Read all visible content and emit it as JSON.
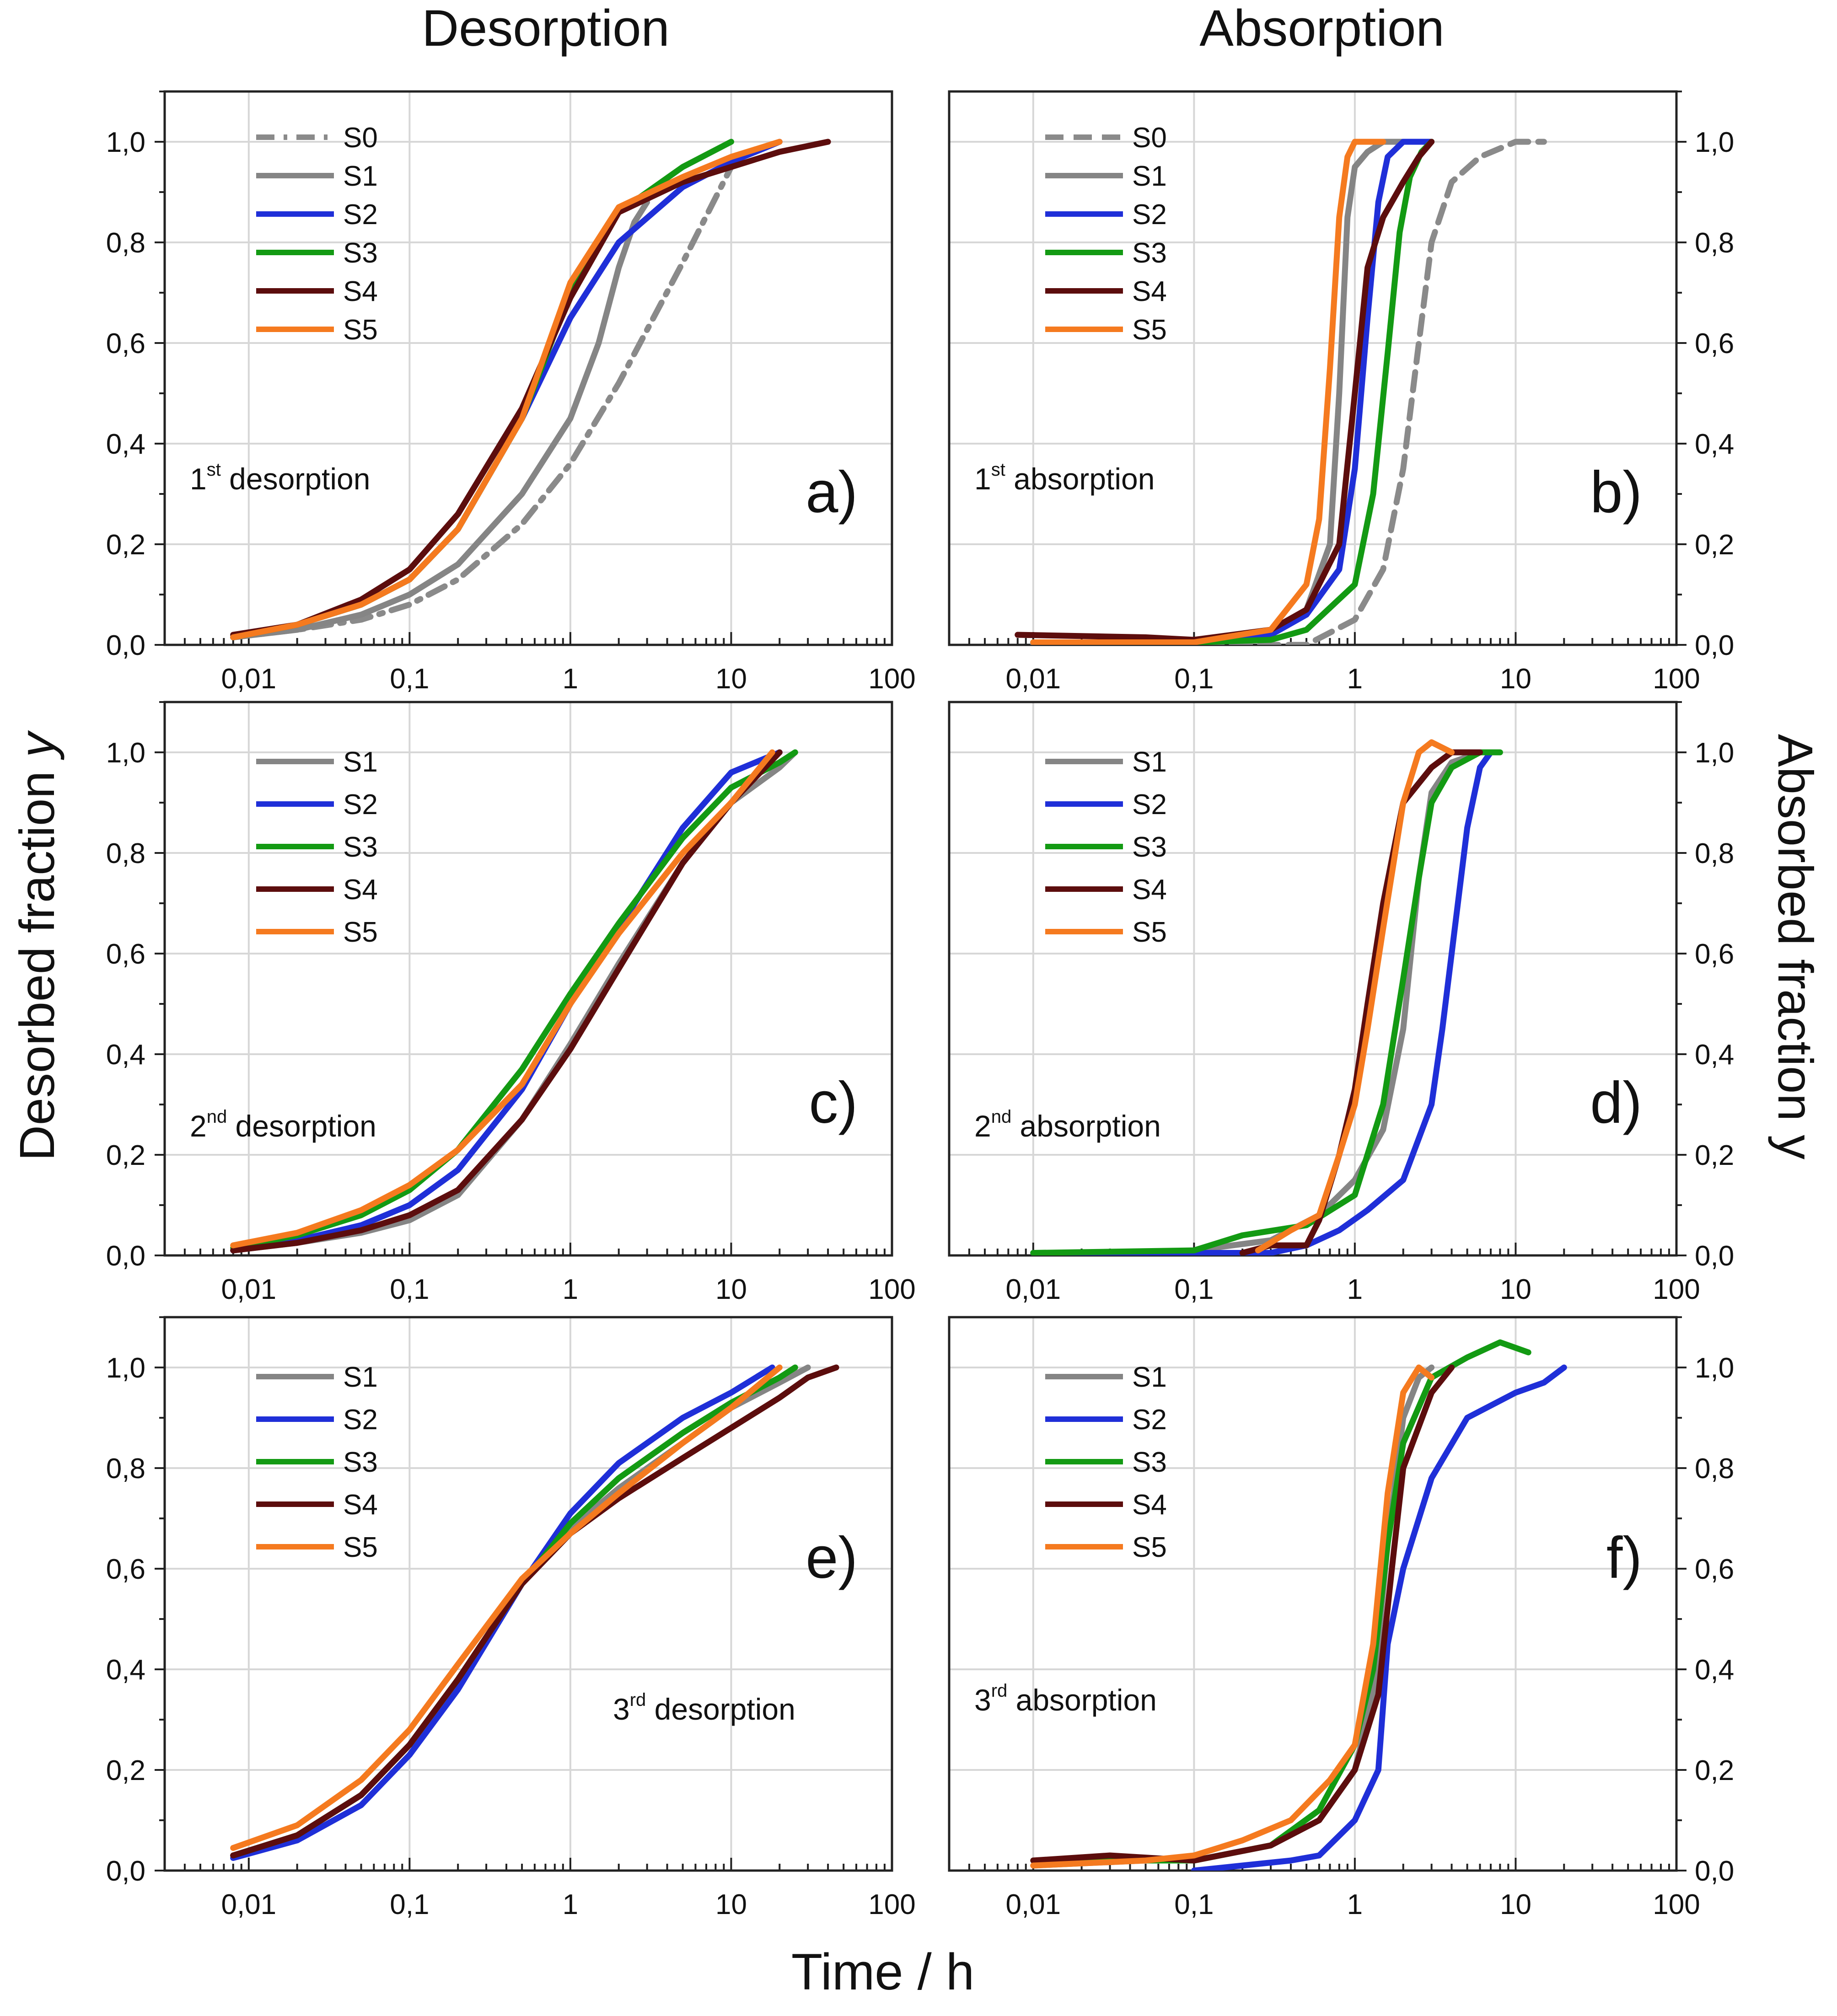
{
  "figure": {
    "column_titles": [
      "Desorption",
      "Absorption"
    ],
    "left_ylabel_main": "Desorbed fraction ",
    "left_ylabel_var": "y",
    "right_ylabel": "Absorbed fraction y",
    "xlabel": "Time / h"
  },
  "colors": {
    "S0": "#8a8a8a",
    "S1": "#858585",
    "S2": "#1f2fd8",
    "S3": "#139a13",
    "S4": "#5c0d0d",
    "S5": "#f57a1f",
    "grid": "#d7d7d7",
    "axis": "#222222"
  },
  "axes": {
    "x_ticks": [
      "0,01",
      "0,1",
      "1",
      "10",
      "100"
    ],
    "x_tick_values": [
      0.01,
      0.1,
      1,
      10,
      100
    ],
    "xlim": [
      0.003,
      100
    ],
    "y_ticks": [
      "0,0",
      "0,2",
      "0,4",
      "0,6",
      "0,8",
      "1,0"
    ],
    "y_tick_values": [
      0,
      0.2,
      0.4,
      0.6,
      0.8,
      1.0
    ],
    "ylim": [
      0,
      1.1
    ]
  },
  "chart_data": [
    {
      "id": "a",
      "type": "line",
      "panel_label": "a)",
      "annotation": {
        "pre": "1",
        "sup": "st",
        "post": " desorption"
      },
      "legend": [
        "S0",
        "S1",
        "S2",
        "S3",
        "S4",
        "S5"
      ],
      "series": [
        {
          "name": "S0",
          "style": "dashdot",
          "x": [
            0.008,
            0.02,
            0.05,
            0.1,
            0.2,
            0.5,
            1,
            2,
            5,
            10
          ],
          "y": [
            0.015,
            0.03,
            0.05,
            0.08,
            0.13,
            0.24,
            0.36,
            0.52,
            0.76,
            0.95
          ]
        },
        {
          "name": "S1",
          "x": [
            0.008,
            0.02,
            0.05,
            0.1,
            0.2,
            0.5,
            1,
            1.5,
            2,
            2.5,
            3
          ],
          "y": [
            0.015,
            0.03,
            0.06,
            0.1,
            0.16,
            0.3,
            0.45,
            0.6,
            0.75,
            0.84,
            0.88
          ]
        },
        {
          "name": "S2",
          "x": [
            0.008,
            0.02,
            0.05,
            0.1,
            0.2,
            0.5,
            1,
            2,
            5,
            10,
            20
          ],
          "y": [
            0.015,
            0.04,
            0.08,
            0.13,
            0.23,
            0.45,
            0.65,
            0.8,
            0.91,
            0.96,
            1.0
          ]
        },
        {
          "name": "S3",
          "x": [
            0.008,
            0.02,
            0.05,
            0.1,
            0.2,
            0.5,
            1,
            2,
            5,
            10
          ],
          "y": [
            0.015,
            0.04,
            0.08,
            0.13,
            0.23,
            0.45,
            0.7,
            0.86,
            0.95,
            1.0
          ]
        },
        {
          "name": "S4",
          "x": [
            0.008,
            0.02,
            0.05,
            0.1,
            0.2,
            0.5,
            1,
            2,
            5,
            10,
            20,
            40
          ],
          "y": [
            0.02,
            0.04,
            0.09,
            0.15,
            0.26,
            0.47,
            0.69,
            0.86,
            0.92,
            0.95,
            0.98,
            1.0
          ]
        },
        {
          "name": "S5",
          "x": [
            0.008,
            0.02,
            0.05,
            0.1,
            0.2,
            0.5,
            1,
            2,
            5,
            10,
            20
          ],
          "y": [
            0.015,
            0.04,
            0.08,
            0.13,
            0.23,
            0.45,
            0.72,
            0.87,
            0.93,
            0.97,
            1.0
          ]
        }
      ]
    },
    {
      "id": "b",
      "type": "line",
      "panel_label": "b)",
      "annotation": {
        "pre": "1",
        "sup": "st",
        "post": " absorption"
      },
      "legend": [
        "S0",
        "S1",
        "S2",
        "S3",
        "S4",
        "S5"
      ],
      "series": [
        {
          "name": "S0",
          "style": "dashed",
          "x": [
            0.01,
            0.1,
            0.3,
            0.5,
            1,
            1.5,
            2,
            2.5,
            3,
            4,
            6,
            10,
            15
          ],
          "y": [
            0.0,
            0.0,
            0.0,
            0.0,
            0.05,
            0.15,
            0.35,
            0.6,
            0.8,
            0.92,
            0.97,
            1.0,
            1.0
          ]
        },
        {
          "name": "S1",
          "x": [
            0.01,
            0.1,
            0.3,
            0.5,
            0.7,
            0.8,
            0.9,
            1.0,
            1.2,
            1.5,
            2,
            3
          ],
          "y": [
            0.005,
            0.005,
            0.02,
            0.07,
            0.2,
            0.5,
            0.85,
            0.95,
            0.98,
            1.0,
            1.0,
            1.0
          ]
        },
        {
          "name": "S2",
          "x": [
            0.01,
            0.1,
            0.3,
            0.5,
            0.8,
            1.0,
            1.2,
            1.4,
            1.6,
            2,
            3
          ],
          "y": [
            0.005,
            0.005,
            0.02,
            0.06,
            0.15,
            0.35,
            0.65,
            0.88,
            0.97,
            1.0,
            1.0
          ]
        },
        {
          "name": "S3",
          "x": [
            0.01,
            0.1,
            0.3,
            0.5,
            1.0,
            1.3,
            1.6,
            1.9,
            2.2,
            2.6,
            3
          ],
          "y": [
            0.005,
            0.005,
            0.01,
            0.03,
            0.12,
            0.3,
            0.58,
            0.82,
            0.93,
            0.98,
            1.0
          ]
        },
        {
          "name": "S4",
          "x": [
            0.008,
            0.05,
            0.1,
            0.3,
            0.5,
            0.8,
            1.0,
            1.2,
            1.5,
            2,
            2.5,
            3
          ],
          "y": [
            0.02,
            0.015,
            0.01,
            0.03,
            0.07,
            0.2,
            0.5,
            0.75,
            0.85,
            0.92,
            0.97,
            1.0
          ]
        },
        {
          "name": "S5",
          "x": [
            0.01,
            0.1,
            0.3,
            0.5,
            0.6,
            0.7,
            0.8,
            0.9,
            1.0,
            1.2,
            1.5
          ],
          "y": [
            0.005,
            0.005,
            0.03,
            0.12,
            0.25,
            0.55,
            0.85,
            0.97,
            1.0,
            1.0,
            1.0
          ]
        }
      ]
    },
    {
      "id": "c",
      "type": "line",
      "panel_label": "c)",
      "annotation": {
        "pre": "2",
        "sup": "nd",
        "post": " desorption"
      },
      "legend": [
        "S1",
        "S2",
        "S3",
        "S4",
        "S5"
      ],
      "series": [
        {
          "name": "S1",
          "x": [
            0.008,
            0.02,
            0.05,
            0.1,
            0.2,
            0.5,
            1,
            2,
            5,
            10,
            20,
            25
          ],
          "y": [
            0.01,
            0.025,
            0.045,
            0.07,
            0.12,
            0.27,
            0.42,
            0.58,
            0.78,
            0.9,
            0.97,
            1.0
          ]
        },
        {
          "name": "S2",
          "x": [
            0.008,
            0.02,
            0.05,
            0.1,
            0.2,
            0.5,
            1,
            2,
            5,
            10,
            20
          ],
          "y": [
            0.01,
            0.03,
            0.06,
            0.1,
            0.17,
            0.33,
            0.5,
            0.65,
            0.85,
            0.96,
            1.0
          ]
        },
        {
          "name": "S3",
          "x": [
            0.008,
            0.02,
            0.05,
            0.1,
            0.2,
            0.5,
            1,
            2,
            5,
            10,
            20,
            25
          ],
          "y": [
            0.015,
            0.04,
            0.08,
            0.13,
            0.21,
            0.37,
            0.52,
            0.66,
            0.83,
            0.93,
            0.98,
            1.0
          ]
        },
        {
          "name": "S4",
          "x": [
            0.008,
            0.02,
            0.05,
            0.1,
            0.2,
            0.5,
            1,
            2,
            5,
            10,
            20
          ],
          "y": [
            0.01,
            0.025,
            0.05,
            0.08,
            0.13,
            0.27,
            0.41,
            0.57,
            0.78,
            0.9,
            1.0
          ]
        },
        {
          "name": "S5",
          "x": [
            0.008,
            0.02,
            0.05,
            0.1,
            0.2,
            0.5,
            1,
            2,
            5,
            10,
            18
          ],
          "y": [
            0.02,
            0.045,
            0.09,
            0.14,
            0.21,
            0.34,
            0.5,
            0.64,
            0.8,
            0.9,
            1.0
          ]
        }
      ]
    },
    {
      "id": "d",
      "type": "line",
      "panel_label": "d)",
      "annotation": {
        "pre": "2",
        "sup": "nd",
        "post": " absorption"
      },
      "legend": [
        "S1",
        "S2",
        "S3",
        "S4",
        "S5"
      ],
      "series": [
        {
          "name": "S1",
          "x": [
            0.01,
            0.05,
            0.1,
            0.3,
            0.6,
            1,
            1.5,
            2,
            2.5,
            3,
            4,
            6
          ],
          "y": [
            0.005,
            0.005,
            0.01,
            0.03,
            0.08,
            0.15,
            0.25,
            0.45,
            0.75,
            0.92,
            0.98,
            1.0
          ]
        },
        {
          "name": "S2",
          "x": [
            0.01,
            0.1,
            0.3,
            0.5,
            0.8,
            1.2,
            2,
            3,
            3.5,
            4,
            5,
            6,
            7
          ],
          "y": [
            0.005,
            0.005,
            0.005,
            0.02,
            0.05,
            0.09,
            0.15,
            0.3,
            0.45,
            0.6,
            0.85,
            0.97,
            1.0
          ]
        },
        {
          "name": "S3",
          "x": [
            0.01,
            0.1,
            0.2,
            0.5,
            1,
            1.5,
            2,
            2.5,
            3,
            4,
            6,
            8
          ],
          "y": [
            0.005,
            0.01,
            0.04,
            0.06,
            0.12,
            0.3,
            0.55,
            0.75,
            0.9,
            0.97,
            1.0,
            1.0
          ]
        },
        {
          "name": "S4",
          "x": [
            0.2,
            0.3,
            0.5,
            0.6,
            0.8,
            1.0,
            1.2,
            1.5,
            2,
            3,
            4,
            6
          ],
          "y": [
            0.005,
            0.02,
            0.02,
            0.07,
            0.2,
            0.33,
            0.5,
            0.7,
            0.9,
            0.97,
            1.0,
            1.0
          ]
        },
        {
          "name": "S5",
          "x": [
            0.25,
            0.4,
            0.6,
            0.8,
            1.0,
            1.2,
            1.5,
            2,
            2.5,
            3,
            4
          ],
          "y": [
            0.01,
            0.05,
            0.08,
            0.2,
            0.3,
            0.45,
            0.65,
            0.9,
            1.0,
            1.02,
            1.0
          ]
        }
      ]
    },
    {
      "id": "e",
      "type": "line",
      "panel_label": "e)",
      "annotation": {
        "pre": "3",
        "sup": "rd",
        "post": " desorption"
      },
      "legend": [
        "S1",
        "S2",
        "S3",
        "S4",
        "S5"
      ],
      "series": [
        {
          "name": "S1",
          "x": [
            0.008,
            0.02,
            0.05,
            0.1,
            0.2,
            0.5,
            1,
            2,
            5,
            10,
            20,
            30
          ],
          "y": [
            0.03,
            0.07,
            0.15,
            0.25,
            0.38,
            0.57,
            0.68,
            0.76,
            0.85,
            0.92,
            0.97,
            1.0
          ]
        },
        {
          "name": "S2",
          "x": [
            0.008,
            0.02,
            0.05,
            0.1,
            0.2,
            0.5,
            1,
            2,
            5,
            10,
            18
          ],
          "y": [
            0.025,
            0.06,
            0.13,
            0.23,
            0.36,
            0.57,
            0.71,
            0.81,
            0.9,
            0.95,
            1.0
          ]
        },
        {
          "name": "S3",
          "x": [
            0.008,
            0.02,
            0.05,
            0.1,
            0.2,
            0.5,
            1,
            2,
            5,
            10,
            20,
            25
          ],
          "y": [
            0.03,
            0.07,
            0.15,
            0.25,
            0.38,
            0.57,
            0.69,
            0.78,
            0.87,
            0.93,
            0.98,
            1.0
          ]
        },
        {
          "name": "S4",
          "x": [
            0.008,
            0.02,
            0.05,
            0.1,
            0.2,
            0.5,
            1,
            2,
            5,
            10,
            20,
            30,
            45
          ],
          "y": [
            0.03,
            0.07,
            0.15,
            0.25,
            0.38,
            0.57,
            0.67,
            0.74,
            0.82,
            0.88,
            0.94,
            0.98,
            1.0
          ]
        },
        {
          "name": "S5",
          "x": [
            0.008,
            0.02,
            0.05,
            0.1,
            0.2,
            0.5,
            1,
            2,
            5,
            10,
            20
          ],
          "y": [
            0.045,
            0.09,
            0.18,
            0.28,
            0.41,
            0.58,
            0.67,
            0.75,
            0.85,
            0.92,
            1.0
          ]
        }
      ]
    },
    {
      "id": "f",
      "type": "line",
      "panel_label": "f)",
      "annotation": {
        "pre": "3",
        "sup": "rd",
        "post": " absorption"
      },
      "legend": [
        "S1",
        "S2",
        "S3",
        "S4",
        "S5"
      ],
      "series": [
        {
          "name": "S1",
          "x": [
            0.01,
            0.05,
            0.1,
            0.3,
            0.6,
            1.0,
            1.3,
            1.6,
            2,
            2.5,
            3
          ],
          "y": [
            0.01,
            0.02,
            0.02,
            0.05,
            0.1,
            0.2,
            0.35,
            0.65,
            0.9,
            0.98,
            1.0
          ]
        },
        {
          "name": "S2",
          "x": [
            0.1,
            0.2,
            0.4,
            0.6,
            1.0,
            1.4,
            1.6,
            2,
            3,
            5,
            10,
            15,
            20
          ],
          "y": [
            0.0,
            0.01,
            0.02,
            0.03,
            0.1,
            0.2,
            0.45,
            0.6,
            0.78,
            0.9,
            0.95,
            0.97,
            1.0
          ]
        },
        {
          "name": "S3",
          "x": [
            0.01,
            0.1,
            0.3,
            0.6,
            1.0,
            1.3,
            1.6,
            2,
            3,
            5,
            8,
            12
          ],
          "y": [
            0.02,
            0.02,
            0.05,
            0.12,
            0.25,
            0.4,
            0.65,
            0.85,
            0.98,
            1.02,
            1.05,
            1.03
          ]
        },
        {
          "name": "S4",
          "x": [
            0.01,
            0.03,
            0.1,
            0.3,
            0.6,
            1.0,
            1.4,
            1.7,
            2,
            3,
            4
          ],
          "y": [
            0.02,
            0.03,
            0.02,
            0.05,
            0.1,
            0.2,
            0.35,
            0.6,
            0.8,
            0.95,
            1.0
          ]
        },
        {
          "name": "S5",
          "x": [
            0.01,
            0.05,
            0.1,
            0.2,
            0.4,
            0.7,
            1.0,
            1.3,
            1.6,
            2.0,
            2.5,
            3
          ],
          "y": [
            0.01,
            0.02,
            0.03,
            0.06,
            0.1,
            0.18,
            0.25,
            0.45,
            0.75,
            0.95,
            1.0,
            0.98
          ]
        }
      ]
    }
  ]
}
